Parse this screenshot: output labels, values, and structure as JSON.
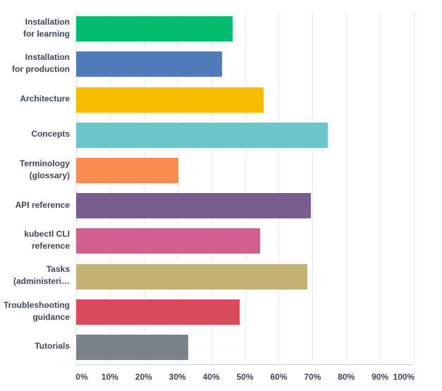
{
  "chart": {
    "background_color": "#ffffff",
    "text_color": "#3d4856",
    "gridline_color": "#e9e9e9",
    "axis_line_color": "#d6d6d6"
  },
  "chart_data": {
    "type": "bar",
    "orientation": "horizontal",
    "title": "",
    "xlabel": "",
    "ylabel": "",
    "xlim": [
      0,
      100
    ],
    "grid": true,
    "x_ticks": [
      "0%",
      "10%",
      "20%",
      "30%",
      "40%",
      "50%",
      "60%",
      "70%",
      "80%",
      "90%",
      "100%"
    ],
    "categories": [
      "Installation for learning",
      "Installation for production",
      "Architecture",
      "Concepts",
      "Terminology (glossary)",
      "API reference",
      "kubectl CLI reference",
      "Tasks (administeri…",
      "Troubleshooting guidance",
      "Tutorials"
    ],
    "values": [
      46.4,
      43.3,
      55.5,
      74.5,
      30.3,
      69.6,
      54.5,
      68.5,
      48.4,
      33.2
    ],
    "bars": [
      {
        "label_lines": [
          "Installation",
          "for learning"
        ],
        "value": 46.4,
        "color": "#00bc6f"
      },
      {
        "label_lines": [
          "Installation",
          "for production"
        ],
        "value": 43.3,
        "color": "#4d7cb8"
      },
      {
        "label_lines": [
          "Architecture"
        ],
        "value": 55.5,
        "color": "#f8bd00"
      },
      {
        "label_lines": [
          "Concepts"
        ],
        "value": 74.5,
        "color": "#6bc6cc"
      },
      {
        "label_lines": [
          "Terminology",
          "(glossary)"
        ],
        "value": 30.3,
        "color": "#fb8a4e"
      },
      {
        "label_lines": [
          "API reference"
        ],
        "value": 69.6,
        "color": "#7a5c90"
      },
      {
        "label_lines": [
          "kubectl CLI",
          "reference"
        ],
        "value": 54.5,
        "color": "#d2608f"
      },
      {
        "label_lines": [
          "Tasks",
          "(administeri…"
        ],
        "value": 68.5,
        "color": "#c3b274"
      },
      {
        "label_lines": [
          "Troubleshooting",
          "guidance"
        ],
        "value": 48.4,
        "color": "#d94a5d"
      },
      {
        "label_lines": [
          "Tutorials"
        ],
        "value": 33.2,
        "color": "#7a838b"
      }
    ]
  }
}
